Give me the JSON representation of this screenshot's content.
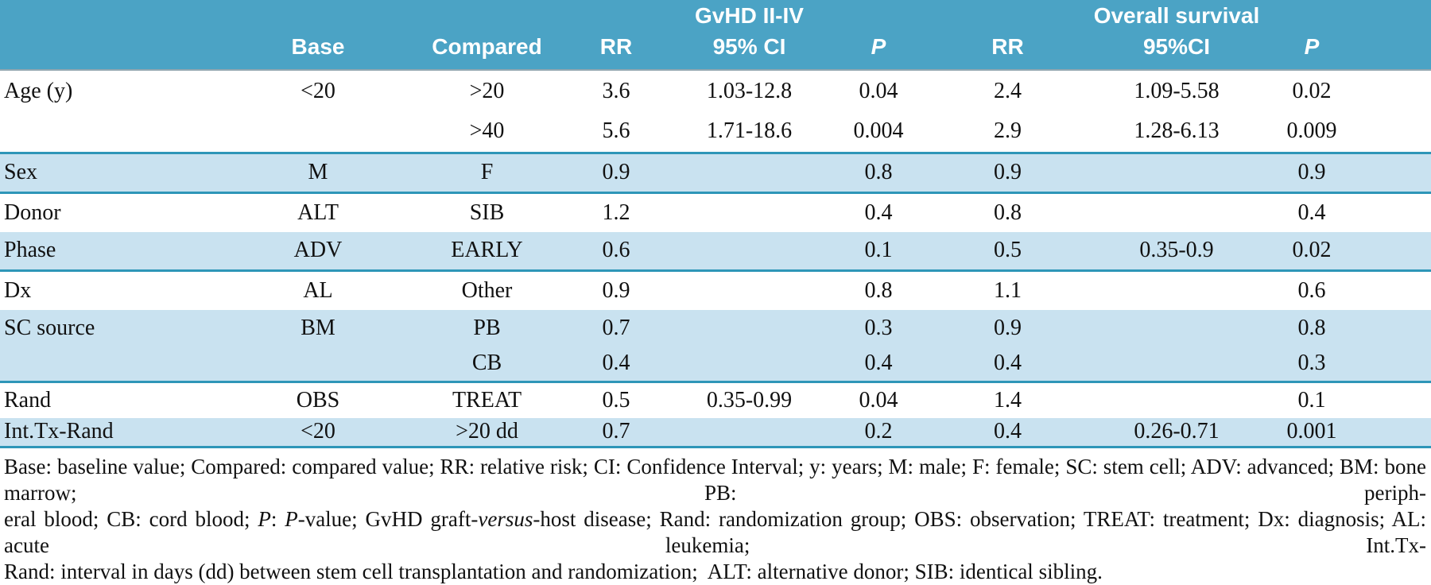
{
  "table": {
    "header": {
      "group_gvhd": "GvHD II-IV",
      "group_os": "Overall survival",
      "base": "Base",
      "compared": "Compared",
      "rr_gvhd": "RR",
      "ci_gvhd": "95% CI",
      "p_gvhd": "P",
      "rr_os": "RR",
      "ci_os": "95%CI",
      "p_os": "P"
    },
    "rows": [
      {
        "label": "Age (y)",
        "base": "<20",
        "compared": ">20",
        "rr_gvhd": "3.6",
        "ci_gvhd": "1.03-12.8",
        "p_gvhd": "0.04",
        "rr_os": "2.4",
        "ci_os": "1.09-5.58",
        "p_os": "0.02",
        "shaded": false,
        "group_end": false
      },
      {
        "label": "",
        "base": "",
        "compared": ">40",
        "rr_gvhd": "5.6",
        "ci_gvhd": "1.71-18.6",
        "p_gvhd": "0.004",
        "rr_os": "2.9",
        "ci_os": "1.28-6.13",
        "p_os": "0.009",
        "shaded": false,
        "group_end": true
      },
      {
        "label": "Sex",
        "base": "M",
        "compared": "F",
        "rr_gvhd": "0.9",
        "ci_gvhd": "",
        "p_gvhd": "0.8",
        "rr_os": "0.9",
        "ci_os": "",
        "p_os": "0.9",
        "shaded": true,
        "group_end": true
      },
      {
        "label": "Donor",
        "base": "ALT",
        "compared": "SIB",
        "rr_gvhd": "1.2",
        "ci_gvhd": "",
        "p_gvhd": "0.4",
        "rr_os": "0.8",
        "ci_os": "",
        "p_os": "0.4",
        "shaded": false,
        "group_end": false
      },
      {
        "label": "Phase",
        "base": "ADV",
        "compared": "EARLY",
        "rr_gvhd": "0.6",
        "ci_gvhd": "",
        "p_gvhd": "0.1",
        "rr_os": "0.5",
        "ci_os": "0.35-0.9",
        "p_os": "0.02",
        "shaded": true,
        "group_end": true
      },
      {
        "label": "Dx",
        "base": "AL",
        "compared": "Other",
        "rr_gvhd": "0.9",
        "ci_gvhd": "",
        "p_gvhd": "0.8",
        "rr_os": "1.1",
        "ci_os": "",
        "p_os": "0.6",
        "shaded": false,
        "group_end": false
      },
      {
        "label": "SC source",
        "base": "BM",
        "compared": "PB",
        "rr_gvhd": "0.7",
        "ci_gvhd": "",
        "p_gvhd": "0.3",
        "rr_os": "0.9",
        "ci_os": "",
        "p_os": "0.8",
        "shaded": true,
        "group_end": false
      },
      {
        "label": "",
        "base": "",
        "compared": "CB",
        "rr_gvhd": "0.4",
        "ci_gvhd": "",
        "p_gvhd": "0.4",
        "rr_os": "0.4",
        "ci_os": "",
        "p_os": "0.3",
        "shaded": true,
        "group_end": true
      },
      {
        "label": "Rand",
        "base": "OBS",
        "compared": "TREAT",
        "rr_gvhd": "0.5",
        "ci_gvhd": "0.35-0.99",
        "p_gvhd": "0.04",
        "rr_os": "1.4",
        "ci_os": "",
        "p_os": "0.1",
        "shaded": false,
        "group_end": false
      },
      {
        "label": "Int.Tx-Rand",
        "base": "<20",
        "compared": ">20 dd",
        "rr_gvhd": "0.7",
        "ci_gvhd": "",
        "p_gvhd": "0.2",
        "rr_os": "0.4",
        "ci_os": "0.26-0.71",
        "p_os": "0.001",
        "shaded": true,
        "group_end": true
      }
    ]
  },
  "footnote": {
    "lines": [
      [
        {
          "t": "Base: baseline value; Compared: compared value; RR: relative risk; CI: Confidence Interval; y: years; M: male; F: female; SC: stem cell; ADV: advanced; BM: bone marrow; PB: periph-"
        }
      ],
      [
        {
          "t": "eral blood; CB: cord blood; "
        },
        {
          "t": "P",
          "i": true
        },
        {
          "t": ": "
        },
        {
          "t": "P",
          "i": true
        },
        {
          "t": "-value; GvHD graft-"
        },
        {
          "t": "versus",
          "i": true
        },
        {
          "t": "-host disease; Rand: randomization group; OBS: observation; TREAT: treatment; Dx: diagnosis; AL: acute leukemia; Int.Tx-"
        }
      ],
      [
        {
          "t": "Rand: interval in days (dd) between stem cell transplantation and randomization;  ALT: alternative donor; SIB: identical sibling."
        }
      ]
    ]
  },
  "colors": {
    "header_bg": "#4BA3C5",
    "row_shade": "#C9E2F0",
    "rule_teal": "#2E96B8"
  }
}
